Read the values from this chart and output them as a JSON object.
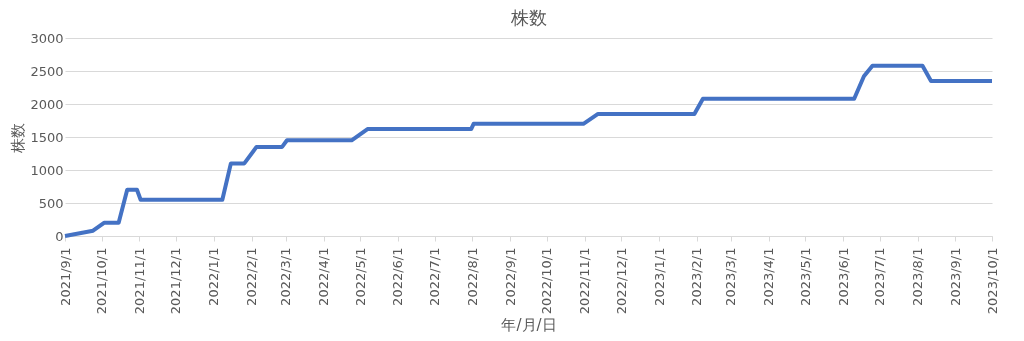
{
  "chart_data": {
    "type": "line",
    "title": "株数",
    "xlabel": "年/月/日",
    "ylabel": "株数",
    "x": [
      "2021-09-01",
      "2021-09-24",
      "2021-10-03",
      "2021-10-15",
      "2021-10-22",
      "2021-10-30",
      "2021-11-02",
      "2022-01-08",
      "2022-01-15",
      "2022-01-26",
      "2022-02-05",
      "2022-02-26",
      "2022-03-02",
      "2022-04-24",
      "2022-05-07",
      "2022-07-31",
      "2022-08-02",
      "2022-10-31",
      "2022-11-12",
      "2023-01-30",
      "2023-02-06",
      "2023-06-10",
      "2023-06-18",
      "2023-06-25",
      "2023-08-05",
      "2023-08-12",
      "2023-10-01"
    ],
    "series": [
      {
        "color": "#4472c4",
        "values": [
          0,
          80,
          200,
          200,
          700,
          700,
          550,
          550,
          1100,
          1100,
          1350,
          1350,
          1450,
          1450,
          1620,
          1620,
          1700,
          1700,
          1850,
          1850,
          2080,
          2080,
          2420,
          2580,
          2580,
          2350,
          2350
        ]
      }
    ],
    "xlim": [
      "2021-09-01",
      "2023-10-01"
    ],
    "xticks": [
      {
        "value": "2021-09-01",
        "label": "2021/9/1"
      },
      {
        "value": "2021-10-01",
        "label": "2021/10/1"
      },
      {
        "value": "2021-11-01",
        "label": "2021/11/1"
      },
      {
        "value": "2021-12-01",
        "label": "2021/12/1"
      },
      {
        "value": "2022-01-01",
        "label": "2022/1/1"
      },
      {
        "value": "2022-02-01",
        "label": "2022/2/1"
      },
      {
        "value": "2022-03-01",
        "label": "2022/3/1"
      },
      {
        "value": "2022-04-01",
        "label": "2022/4/1"
      },
      {
        "value": "2022-05-01",
        "label": "2022/5/1"
      },
      {
        "value": "2022-06-01",
        "label": "2022/6/1"
      },
      {
        "value": "2022-07-01",
        "label": "2022/7/1"
      },
      {
        "value": "2022-08-01",
        "label": "2022/8/1"
      },
      {
        "value": "2022-09-01",
        "label": "2022/9/1"
      },
      {
        "value": "2022-10-01",
        "label": "2022/10/1"
      },
      {
        "value": "2022-11-01",
        "label": "2022/11/1"
      },
      {
        "value": "2022-12-01",
        "label": "2022/12/1"
      },
      {
        "value": "2023-01-01",
        "label": "2023/1/1"
      },
      {
        "value": "2023-02-01",
        "label": "2023/2/1"
      },
      {
        "value": "2023-03-01",
        "label": "2023/3/1"
      },
      {
        "value": "2023-04-01",
        "label": "2023/4/1"
      },
      {
        "value": "2023-05-01",
        "label": "2023/5/1"
      },
      {
        "value": "2023-06-01",
        "label": "2023/6/1"
      },
      {
        "value": "2023-07-01",
        "label": "2023/7/1"
      },
      {
        "value": "2023-08-01",
        "label": "2023/8/1"
      },
      {
        "value": "2023-09-01",
        "label": "2023/9/1"
      },
      {
        "value": "2023-10-01",
        "label": "2023/10/1"
      }
    ],
    "ylim": [
      0,
      3000
    ],
    "yticks": [
      0,
      500,
      1000,
      1500,
      2000,
      2500,
      3000
    ],
    "grid": "y",
    "marker": "none",
    "line_style": "solid"
  }
}
